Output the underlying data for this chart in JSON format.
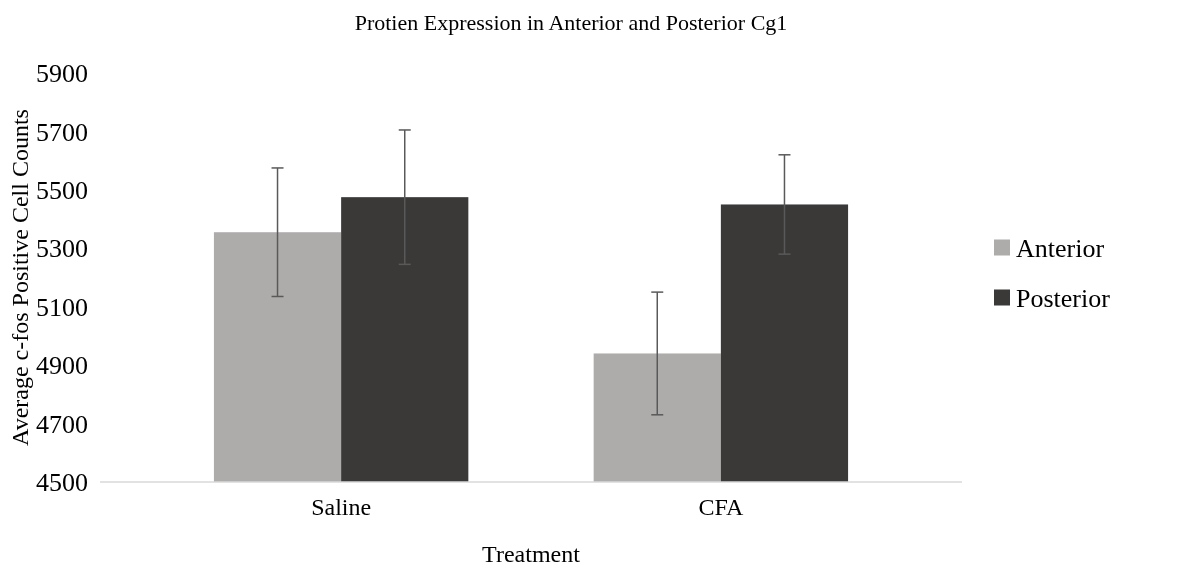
{
  "chart_data": {
    "type": "bar",
    "title": "Protien Expression in Anterior and Posterior Cg1",
    "xlabel": "Treatment",
    "ylabel": "Average c-fos Positive Cell Counts",
    "categories": [
      "Saline",
      "CFA"
    ],
    "series": [
      {
        "name": "Anterior",
        "color": "#aeabab",
        "values": [
          5355,
          4940
        ],
        "errors": [
          220,
          210
        ]
      },
      {
        "name": "Posterior",
        "color": "#3a3938",
        "values": [
          5475,
          5450
        ],
        "errors": [
          230,
          170
        ]
      }
    ],
    "ylim": [
      4500,
      5900
    ],
    "yticks": [
      4500,
      4700,
      4900,
      5100,
      5300,
      5500,
      5700,
      5900
    ],
    "grid": false,
    "legend": "right"
  }
}
